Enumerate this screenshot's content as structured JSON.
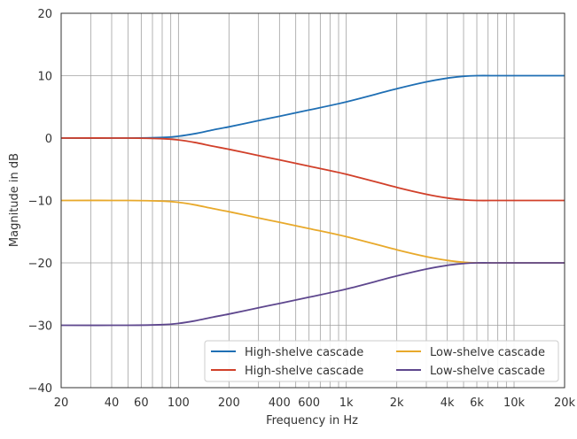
{
  "chart_data": {
    "type": "line",
    "title": "",
    "xlabel": "Frequency in Hz",
    "ylabel": "Magnitude in dB",
    "xscale": "log",
    "xlim": [
      20,
      20000
    ],
    "ylim": [
      -40,
      20
    ],
    "grid": true,
    "legend_placement": "lower-right",
    "x_ticks": [
      20,
      40,
      60,
      100,
      200,
      400,
      600,
      1000,
      2000,
      4000,
      6000,
      10000,
      20000
    ],
    "x_tick_labels": [
      "20",
      "40",
      "60",
      "100",
      "200",
      "400",
      "600",
      "1k",
      "2k",
      "4k",
      "6k",
      "10k",
      "20k"
    ],
    "y_ticks": [
      -40,
      -30,
      -20,
      -10,
      0,
      10,
      20
    ],
    "y_tick_labels": [
      "−40",
      "−30",
      "−20",
      "−10",
      "0",
      "10",
      "20"
    ],
    "series": [
      {
        "name": "High-shelve cascade",
        "color": "#1f6fb4",
        "x": [
          20,
          50,
          80,
          100,
          125,
          160,
          200,
          300,
          400,
          600,
          1000,
          2000,
          3000,
          4000,
          5000,
          6000,
          8000,
          10000,
          20000
        ],
        "y": [
          0,
          0,
          0.1,
          0.3,
          0.7,
          1.3,
          1.8,
          2.8,
          3.5,
          4.5,
          5.8,
          7.9,
          9.0,
          9.6,
          9.9,
          10.0,
          10.0,
          10.0,
          10.0
        ]
      },
      {
        "name": "High-shelve cascade",
        "color": "#d1402a",
        "x": [
          20,
          50,
          80,
          100,
          125,
          160,
          200,
          300,
          400,
          600,
          1000,
          2000,
          3000,
          4000,
          5000,
          6000,
          8000,
          10000,
          20000
        ],
        "y": [
          0,
          0,
          -0.1,
          -0.3,
          -0.7,
          -1.3,
          -1.8,
          -2.8,
          -3.5,
          -4.5,
          -5.8,
          -7.9,
          -9.0,
          -9.6,
          -9.9,
          -10.0,
          -10.0,
          -10.0,
          -10.0
        ]
      },
      {
        "name": "Low-shelve cascade",
        "color": "#e8a92b",
        "x": [
          20,
          50,
          80,
          100,
          125,
          160,
          200,
          300,
          400,
          600,
          1000,
          2000,
          3000,
          4000,
          5000,
          6000,
          8000,
          10000,
          20000
        ],
        "y": [
          -10,
          -10,
          -10.1,
          -10.3,
          -10.7,
          -11.3,
          -11.8,
          -12.8,
          -13.5,
          -14.5,
          -15.8,
          -17.9,
          -19.0,
          -19.6,
          -19.9,
          -20.0,
          -20.0,
          -20.0,
          -20.0
        ]
      },
      {
        "name": "Low-shelve cascade",
        "color": "#5e478e",
        "x": [
          20,
          50,
          80,
          100,
          125,
          160,
          200,
          300,
          400,
          600,
          1000,
          2000,
          3000,
          4000,
          5000,
          6000,
          8000,
          10000,
          20000
        ],
        "y": [
          -30,
          -30,
          -29.9,
          -29.7,
          -29.3,
          -28.7,
          -28.2,
          -27.2,
          -26.5,
          -25.5,
          -24.2,
          -22.1,
          -21.0,
          -20.4,
          -20.1,
          -20.0,
          -20.0,
          -20.0,
          -20.0
        ]
      }
    ]
  }
}
